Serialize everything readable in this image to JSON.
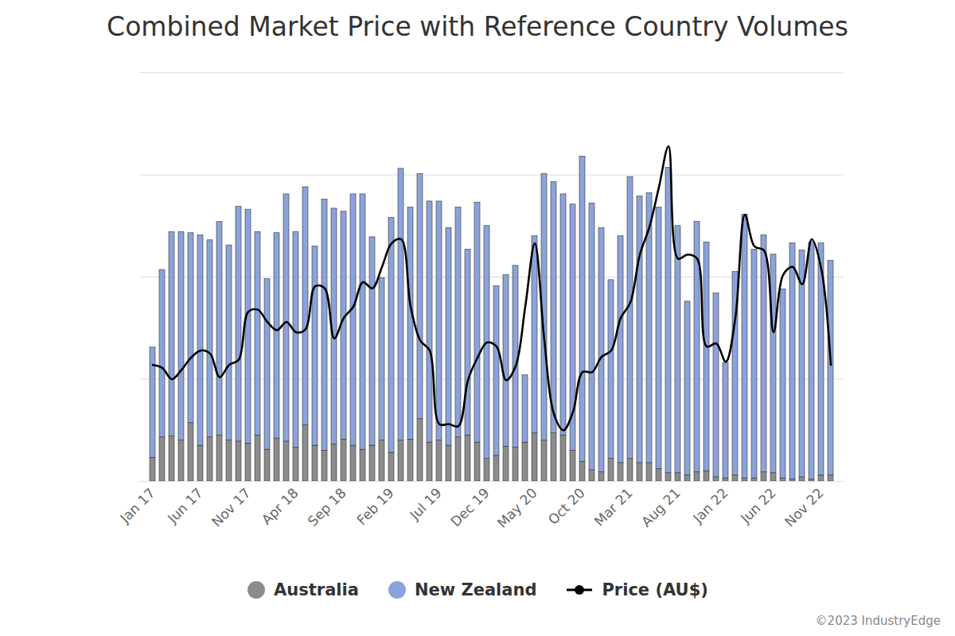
{
  "chart_data": {
    "type": "bar",
    "title": "Combined Market Price with Reference Country Volumes",
    "caption": "©2023 IndustryEdge",
    "stacked": true,
    "grid": true,
    "tick_labels": "x",
    "legend": "bottom",
    "categories": [
      "Jan 17",
      null,
      null,
      null,
      null,
      "Jun 17",
      null,
      null,
      null,
      null,
      "Nov 17",
      null,
      null,
      null,
      null,
      "Apr 18",
      null,
      null,
      null,
      null,
      "Sep 18",
      null,
      null,
      null,
      null,
      "Feb 19",
      null,
      null,
      null,
      null,
      "Jul 19",
      null,
      null,
      null,
      null,
      "Dec 19",
      null,
      null,
      null,
      null,
      "May 20",
      null,
      null,
      null,
      null,
      "Oct 20",
      null,
      null,
      null,
      null,
      "Mar 21",
      null,
      null,
      null,
      null,
      "Aug 21",
      null,
      null,
      null,
      null,
      "Jan 22",
      null,
      null,
      null,
      null,
      "Jun 22",
      null,
      null,
      null,
      null,
      "Nov 22",
      null
    ],
    "ylim": [
      0,
      4
    ],
    "yticks": [
      0,
      1,
      2,
      3,
      4
    ],
    "series": [
      {
        "name": "Australia",
        "type": "bar",
        "color": "#8c8c8c",
        "values": [
          0.23,
          0.43,
          0.44,
          0.4,
          0.57,
          0.35,
          0.43,
          0.45,
          0.4,
          0.39,
          0.37,
          0.45,
          0.31,
          0.42,
          0.39,
          0.33,
          0.55,
          0.35,
          0.3,
          0.36,
          0.41,
          0.35,
          0.31,
          0.35,
          0.4,
          0.28,
          0.4,
          0.41,
          0.61,
          0.38,
          0.4,
          0.35,
          0.43,
          0.45,
          0.38,
          0.22,
          0.25,
          0.34,
          0.33,
          0.38,
          0.47,
          0.4,
          0.47,
          0.45,
          0.3,
          0.19,
          0.11,
          0.09,
          0.22,
          0.18,
          0.22,
          0.18,
          0.18,
          0.12,
          0.08,
          0.08,
          0.06,
          0.09,
          0.1,
          0.04,
          0.03,
          0.06,
          0.03,
          0.03,
          0.09,
          0.08,
          0.03,
          0.02,
          0.04,
          0.02,
          0.06,
          0.06
        ]
      },
      {
        "name": "New Zealand",
        "type": "bar",
        "color": "#8ba3d9",
        "values": [
          1.08,
          1.64,
          2.0,
          2.04,
          1.86,
          2.06,
          1.93,
          2.09,
          1.91,
          2.3,
          2.29,
          1.99,
          1.67,
          2.01,
          2.42,
          2.11,
          2.33,
          1.95,
          2.46,
          2.31,
          2.23,
          2.46,
          2.5,
          2.04,
          1.59,
          2.3,
          2.66,
          2.27,
          2.4,
          2.36,
          2.34,
          2.13,
          2.25,
          1.82,
          2.35,
          2.28,
          1.66,
          1.68,
          1.78,
          0.66,
          1.93,
          2.61,
          2.46,
          2.36,
          2.41,
          2.99,
          2.61,
          2.39,
          1.75,
          2.22,
          2.76,
          2.61,
          2.64,
          2.56,
          2.99,
          2.42,
          1.7,
          2.45,
          2.24,
          1.8,
          1.13,
          1.99,
          2.58,
          2.24,
          2.32,
          2.14,
          1.85,
          2.31,
          2.22,
          2.32,
          2.27,
          2.1
        ]
      },
      {
        "name": "Price (AU$)",
        "type": "line",
        "color": "#000000",
        "marker": "circle",
        "values": [
          1.14,
          1.11,
          1.0,
          1.09,
          1.21,
          1.28,
          1.25,
          1.02,
          1.14,
          1.19,
          1.66,
          1.68,
          1.56,
          1.48,
          1.56,
          1.46,
          1.49,
          1.91,
          1.89,
          1.4,
          1.6,
          1.71,
          1.95,
          1.89,
          2.1,
          2.33,
          2.37,
          1.71,
          1.38,
          1.28,
          0.56,
          0.56,
          0.54,
          0.99,
          1.21,
          1.36,
          1.32,
          0.99,
          1.13,
          1.71,
          2.33,
          1.38,
          0.66,
          0.5,
          0.68,
          1.07,
          1.07,
          1.22,
          1.28,
          1.6,
          1.75,
          2.22,
          2.49,
          2.88,
          3.28,
          2.18,
          2.22,
          2.18,
          1.32,
          1.35,
          1.17,
          1.6,
          2.61,
          2.3,
          2.26,
          1.46,
          2.02,
          2.1,
          1.93,
          2.37,
          2.08,
          1.14
        ]
      }
    ]
  }
}
